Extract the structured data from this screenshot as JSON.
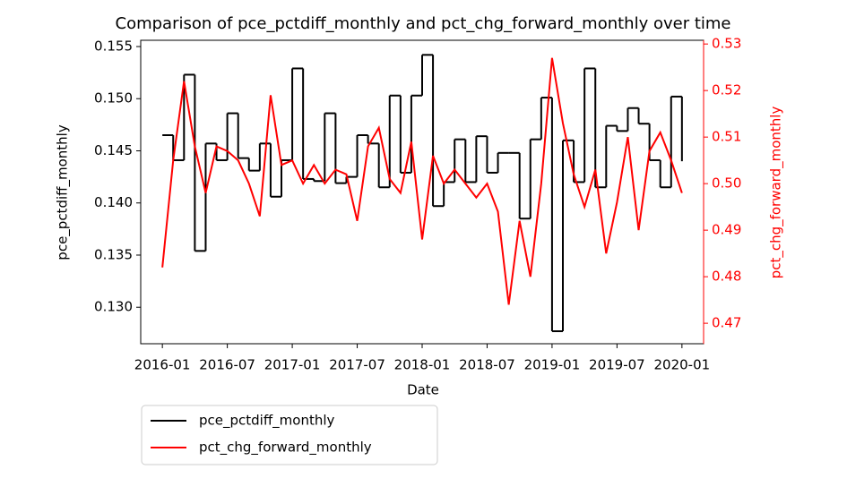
{
  "chart_data": {
    "type": "line",
    "title": "Comparison of pce_pctdiff_monthly and pct_chg_forward_monthly over time",
    "x_label": "Date",
    "y_label": "pce_pctdiff_monthly",
    "y2_label": "pct_chg_forward_monthly",
    "y2_label_color": "#ff0000",
    "x": [
      "2016-01",
      "2016-02",
      "2016-03",
      "2016-04",
      "2016-05",
      "2016-06",
      "2016-07",
      "2016-08",
      "2016-09",
      "2016-10",
      "2016-11",
      "2016-12",
      "2017-01",
      "2017-02",
      "2017-03",
      "2017-04",
      "2017-05",
      "2017-06",
      "2017-07",
      "2017-08",
      "2017-09",
      "2017-10",
      "2017-11",
      "2017-12",
      "2018-01",
      "2018-02",
      "2018-03",
      "2018-04",
      "2018-05",
      "2018-06",
      "2018-07",
      "2018-08",
      "2018-09",
      "2018-10",
      "2018-11",
      "2018-12",
      "2019-01",
      "2019-02",
      "2019-03",
      "2019-04",
      "2019-05",
      "2019-06",
      "2019-07",
      "2019-08",
      "2019-09",
      "2019-10",
      "2019-11",
      "2019-12",
      "2020-01"
    ],
    "xlim": [
      "2015-11",
      "2020-03"
    ],
    "xticks": [
      "2016-01",
      "2016-07",
      "2017-01",
      "2017-07",
      "2018-01",
      "2018-07",
      "2019-01",
      "2019-07",
      "2020-01"
    ],
    "ylim": [
      0.1265,
      0.1556
    ],
    "yticks": [
      {
        "value": 0.13,
        "label": "0.130"
      },
      {
        "value": 0.135,
        "label": "0.135"
      },
      {
        "value": 0.14,
        "label": "0.140"
      },
      {
        "value": 0.145,
        "label": "0.145"
      },
      {
        "value": 0.15,
        "label": "0.150"
      },
      {
        "value": 0.155,
        "label": "0.155"
      }
    ],
    "y2lim": [
      0.4656,
      0.5308
    ],
    "y2ticks": [
      {
        "value": 0.47,
        "label": "0.47"
      },
      0.48,
      0.49,
      {
        "value": 0.5,
        "label": "0.50"
      },
      0.51,
      0.52,
      0.53
    ],
    "legend": "below-left",
    "series": [
      {
        "name": "pce_pctdiff_monthly",
        "color": "#000000",
        "step": true,
        "values": [
          0.1465,
          0.1441,
          0.1523,
          0.1354,
          0.1457,
          0.1441,
          0.1486,
          0.1443,
          0.1431,
          0.1457,
          0.1406,
          0.1441,
          0.1529,
          0.1423,
          0.1421,
          0.1486,
          0.1419,
          0.1425,
          0.1465,
          0.1457,
          0.1415,
          0.1503,
          0.1429,
          0.1503,
          0.1542,
          0.1397,
          0.142,
          0.1461,
          0.142,
          0.1464,
          0.1429,
          0.1448,
          0.1448,
          0.1385,
          0.1461,
          0.1501,
          0.1277,
          0.146,
          0.142,
          0.1529,
          0.1415,
          0.1474,
          0.1469,
          0.1491,
          0.1476,
          0.1441,
          0.1415,
          0.1502,
          0.144
        ]
      },
      {
        "name": "pct_chg_forward_monthly",
        "color": "#ff0000",
        "axis": "y2",
        "values": [
          0.482,
          0.505,
          0.522,
          0.508,
          0.498,
          0.508,
          0.507,
          0.505,
          0.5,
          0.493,
          0.519,
          0.504,
          0.505,
          0.5,
          0.504,
          0.5,
          0.503,
          0.502,
          0.492,
          0.508,
          0.512,
          0.501,
          0.498,
          0.509,
          0.488,
          0.506,
          0.5,
          0.503,
          0.5,
          0.497,
          0.5,
          0.494,
          0.474,
          0.492,
          0.48,
          0.5,
          0.527,
          0.513,
          0.502,
          0.495,
          0.503,
          0.485,
          0.496,
          0.51,
          0.49,
          0.507,
          0.511,
          0.505,
          0.498
        ]
      }
    ]
  }
}
